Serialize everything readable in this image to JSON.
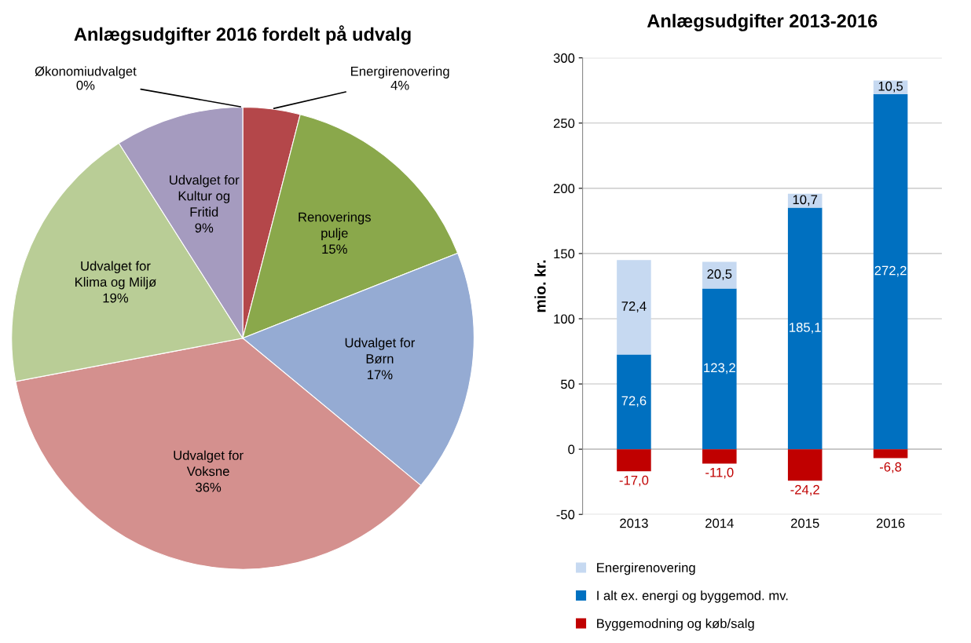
{
  "chart_data": [
    {
      "type": "pie",
      "title": "Anlægsudgifter 2016 fordelt på udvalg",
      "categories": [
        "Økonomiudvalget",
        "Energirenovering",
        "Renoverings\npulje",
        "Udvalget for\nBørn",
        "Udvalget for\nVoksne",
        "Udvalget for\nKlima og Miljø",
        "Udvalget for\nKultur og\nFritid"
      ],
      "values": [
        0,
        4,
        15,
        17,
        36,
        19,
        9
      ],
      "colors": [
        "#4f81bd",
        "#b4474a",
        "#8aa84b",
        "#95abd3",
        "#d4908e",
        "#b9cd96",
        "#a59bbf"
      ],
      "value_labels": [
        "0%",
        "4%",
        "15%",
        "17%",
        "36%",
        "19%",
        "9%"
      ]
    },
    {
      "type": "bar",
      "stacked": true,
      "title": "Anlægsudgifter 2013-2016",
      "ylabel": "mio. kr.",
      "categories": [
        "2013",
        "2014",
        "2015",
        "2016"
      ],
      "series": [
        {
          "name": "I alt ex. energi og byggemod. mv.",
          "color": "#0070c0",
          "values": [
            72.6,
            123.2,
            185.1,
            272.2
          ],
          "value_labels": [
            "72,6",
            "123,2",
            "185,1",
            "272,2"
          ]
        },
        {
          "name": "Energirenovering",
          "color": "#c6d9f1",
          "values": [
            72.4,
            20.5,
            10.7,
            10.5
          ],
          "value_labels": [
            "72,4",
            "20,5",
            "10,7",
            "10,5"
          ]
        },
        {
          "name": "Byggemodning og køb/salg",
          "color": "#c00000",
          "values": [
            -17.0,
            -11.0,
            -24.2,
            -6.8
          ],
          "value_labels": [
            "-17,0",
            "-11,0",
            "-24,2",
            "-6,8"
          ]
        }
      ],
      "ylim": [
        -50,
        300
      ],
      "yticks": [
        -50,
        0,
        50,
        100,
        150,
        200,
        250,
        300
      ],
      "grid": "y",
      "legend": "bottom"
    }
  ]
}
